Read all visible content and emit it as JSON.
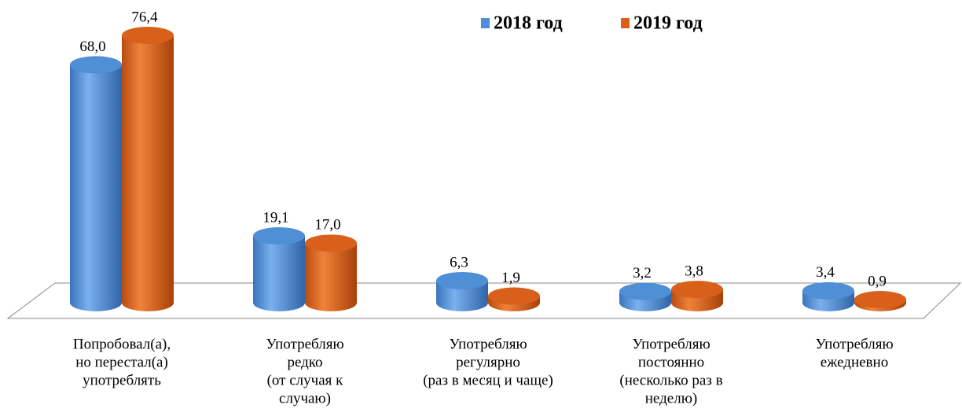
{
  "chart_data": {
    "type": "bar3d",
    "categories": [
      [
        "Попробовал(а),",
        "но перестал(а)",
        "употреблять"
      ],
      [
        "Употребляю",
        "редко",
        "(от случая к",
        "случаю)"
      ],
      [
        "Употребляю",
        "регулярно",
        "(раз в месяц и чаще)"
      ],
      [
        "Употребляю",
        "постоянно",
        "(несколько раз в",
        "неделю)"
      ],
      [
        "Употребляю",
        "ежедневно"
      ]
    ],
    "series": [
      {
        "name": "2018 год",
        "color": "#4f8fd6",
        "values": [
          68.0,
          19.1,
          6.3,
          3.2,
          3.4
        ],
        "value_labels": [
          "68,0",
          "19,1",
          "6,3",
          "3,2",
          "3,4"
        ]
      },
      {
        "name": "2019 год",
        "color": "#d9601a",
        "values": [
          76.4,
          17.0,
          1.9,
          3.8,
          0.9
        ],
        "value_labels": [
          "76,4",
          "17,0",
          "1,9",
          "3,8",
          "0,9"
        ]
      }
    ],
    "legend": "top"
  }
}
